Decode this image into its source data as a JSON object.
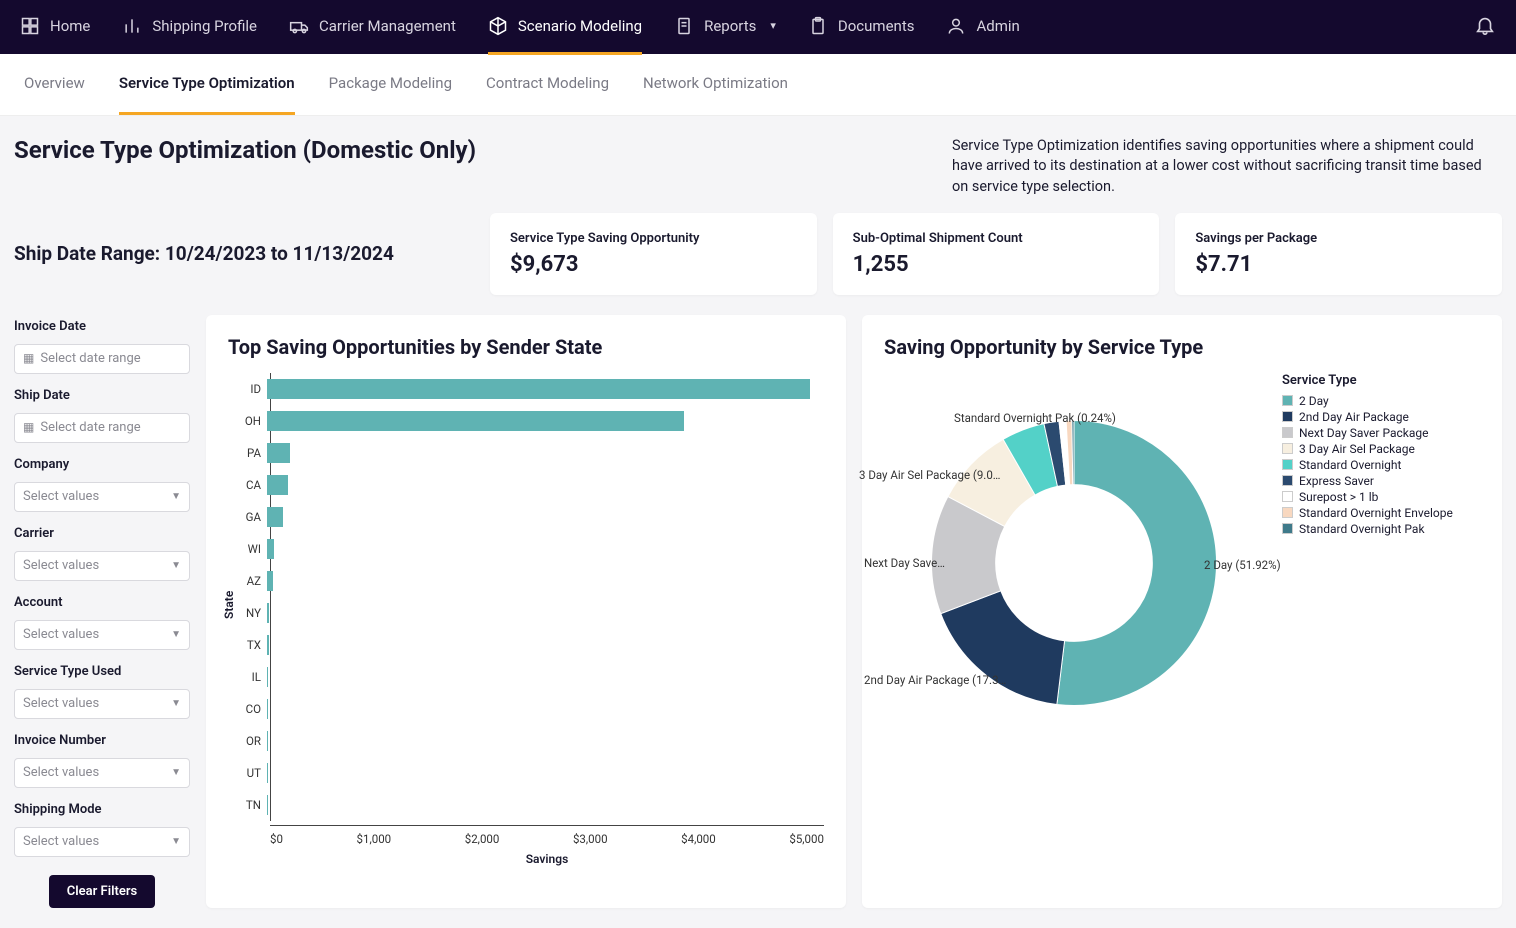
{
  "topnav": {
    "items": [
      {
        "label": "Home",
        "icon": "home"
      },
      {
        "label": "Shipping Profile",
        "icon": "bars"
      },
      {
        "label": "Carrier Management",
        "icon": "truck"
      },
      {
        "label": "Scenario Modeling",
        "icon": "cube",
        "active": true
      },
      {
        "label": "Reports",
        "icon": "doc",
        "chevron": true
      },
      {
        "label": "Documents",
        "icon": "clip"
      },
      {
        "label": "Admin",
        "icon": "user"
      }
    ]
  },
  "subnav": {
    "items": [
      {
        "label": "Overview"
      },
      {
        "label": "Service Type Optimization",
        "active": true
      },
      {
        "label": "Package Modeling"
      },
      {
        "label": "Contract Modeling"
      },
      {
        "label": "Network Optimization"
      }
    ]
  },
  "page": {
    "title": "Service Type Optimization (Domestic Only)",
    "description": "Service Type Optimization identifies saving opportunities where a shipment could have arrived to its destination at a lower cost without sacrificing transit time based on service type selection.",
    "ship_date_range": "Ship Date Range: 10/24/2023 to 11/13/2024"
  },
  "kpis": [
    {
      "label": "Service Type Saving Opportunity",
      "value": "$9,673"
    },
    {
      "label": "Sub-Optimal Shipment Count",
      "value": "1,255"
    },
    {
      "label": "Savings per Package",
      "value": "$7.71"
    }
  ],
  "filters": {
    "date_placeholder": "Select date range",
    "select_placeholder": "Select values",
    "clear_label": "Clear Filters",
    "items": [
      {
        "label": "Invoice Date",
        "type": "date"
      },
      {
        "label": "Ship Date",
        "type": "date"
      },
      {
        "label": "Company",
        "type": "select"
      },
      {
        "label": "Carrier",
        "type": "select"
      },
      {
        "label": "Account",
        "type": "select"
      },
      {
        "label": "Service Type Used",
        "type": "select"
      },
      {
        "label": "Invoice Number",
        "type": "select"
      },
      {
        "label": "Shipping Mode",
        "type": "select"
      }
    ]
  },
  "bar_chart": {
    "title": "Top Saving Opportunities by Sender State",
    "xlabel": "Savings",
    "ylabel": "State",
    "xmax": 5300,
    "xticks": [
      "$0",
      "$1,000",
      "$2,000",
      "$3,000",
      "$4,000",
      "$5,000"
    ],
    "bar_color": "#5fb3b3",
    "categories": [
      "ID",
      "OH",
      "PA",
      "CA",
      "GA",
      "WI",
      "AZ",
      "NY",
      "TX",
      "IL",
      "CO",
      "OR",
      "UT",
      "TN"
    ],
    "values": [
      5200,
      4000,
      220,
      200,
      150,
      70,
      60,
      20,
      15,
      10,
      8,
      6,
      5,
      4
    ]
  },
  "donut": {
    "title": "Saving Opportunity by Service Type",
    "legend_title": "Service Type",
    "inner_radius": 0.55,
    "series": [
      {
        "label": "2 Day",
        "value": 51.92,
        "color": "#5fb3b3",
        "callout": "2 Day (51.92%)"
      },
      {
        "label": "2nd Day Air Package",
        "value": 17.3,
        "color": "#1f3a5f",
        "callout": "2nd Day Air Package (17.3…"
      },
      {
        "label": "Next Day Saver Package",
        "value": 13.5,
        "color": "#c9c9cc",
        "callout": "Next Day Save…"
      },
      {
        "label": "3 Day Air Sel Package",
        "value": 9.0,
        "color": "#f7efe0",
        "callout": "3 Day Air Sel Package (9.0…"
      },
      {
        "label": "Standard Overnight",
        "value": 4.9,
        "color": "#53d1c8"
      },
      {
        "label": "Express Saver",
        "value": 1.7,
        "color": "#2b4a6f"
      },
      {
        "label": "Surepost > 1 lb",
        "value": 0.8,
        "color": "#fff"
      },
      {
        "label": "Standard Overnight Envelope",
        "value": 0.64,
        "color": "#f8d8c0"
      },
      {
        "label": "Standard Overnight Pak",
        "value": 0.24,
        "color": "#3f7a8a",
        "callout": "Standard Overnight Pak (0.24%)"
      }
    ]
  }
}
